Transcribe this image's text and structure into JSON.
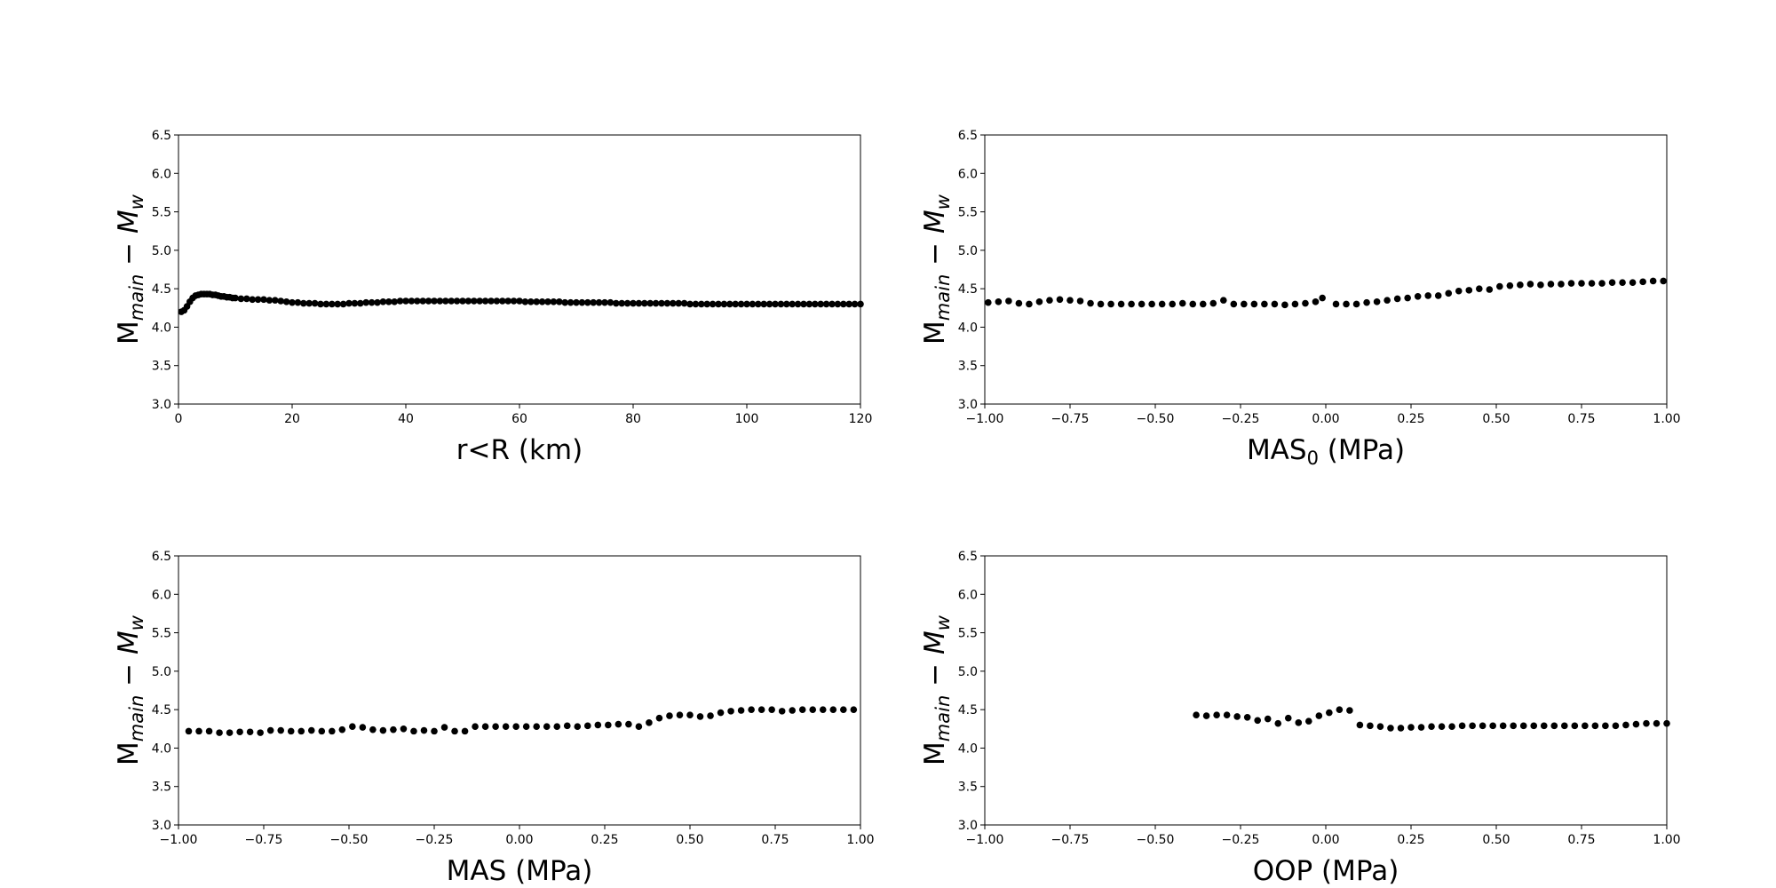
{
  "chart_data": [
    {
      "type": "scatter",
      "xlabel_main": "r<R (km)",
      "xlabel_sub": "",
      "xlabel_tail": "",
      "ylabel": {
        "main": "M",
        "sub1": "main",
        "mid": " − ",
        "italic": "M",
        "sub2": "w"
      },
      "xlim": [
        0,
        120
      ],
      "ylim": [
        3.0,
        6.5
      ],
      "xticks": [
        "0",
        "20",
        "40",
        "60",
        "80",
        "100",
        "120"
      ],
      "xtick_values": [
        0,
        20,
        40,
        60,
        80,
        100,
        120
      ],
      "yticks": [
        "3.0",
        "3.5",
        "4.0",
        "4.5",
        "5.0",
        "5.5",
        "6.0",
        "6.5"
      ],
      "ytick_values": [
        3.0,
        3.5,
        4.0,
        4.5,
        5.0,
        5.5,
        6.0,
        6.5
      ],
      "marker_color": "#000000",
      "series": [
        {
          "x": [
            0.5,
            1,
            1.5,
            2,
            2.5,
            3,
            3.5,
            4,
            4.5,
            5,
            5.5,
            6,
            6.5,
            7,
            7.5,
            8,
            8.5,
            9,
            9.5,
            10,
            11,
            12,
            13,
            14,
            15,
            16,
            17,
            18,
            19,
            20,
            21,
            22,
            23,
            24,
            25,
            26,
            27,
            28,
            29,
            30,
            31,
            32,
            33,
            34,
            35,
            36,
            37,
            38,
            39,
            40,
            41,
            42,
            43,
            44,
            45,
            46,
            47,
            48,
            49,
            50,
            51,
            52,
            53,
            54,
            55,
            56,
            57,
            58,
            59,
            60,
            61,
            62,
            63,
            64,
            65,
            66,
            67,
            68,
            69,
            70,
            71,
            72,
            73,
            74,
            75,
            76,
            77,
            78,
            79,
            80,
            81,
            82,
            83,
            84,
            85,
            86,
            87,
            88,
            89,
            90,
            91,
            92,
            93,
            94,
            95,
            96,
            97,
            98,
            99,
            100,
            101,
            102,
            103,
            104,
            105,
            106,
            107,
            108,
            109,
            110,
            111,
            112,
            113,
            114,
            115,
            116,
            117,
            118,
            119,
            120
          ],
          "y": [
            4.2,
            4.22,
            4.27,
            4.33,
            4.38,
            4.41,
            4.42,
            4.43,
            4.43,
            4.43,
            4.43,
            4.42,
            4.42,
            4.41,
            4.4,
            4.4,
            4.39,
            4.39,
            4.38,
            4.38,
            4.37,
            4.37,
            4.36,
            4.36,
            4.36,
            4.35,
            4.35,
            4.34,
            4.33,
            4.32,
            4.32,
            4.31,
            4.31,
            4.31,
            4.3,
            4.3,
            4.3,
            4.3,
            4.3,
            4.31,
            4.31,
            4.31,
            4.32,
            4.32,
            4.32,
            4.33,
            4.33,
            4.33,
            4.34,
            4.34,
            4.34,
            4.34,
            4.34,
            4.34,
            4.34,
            4.34,
            4.34,
            4.34,
            4.34,
            4.34,
            4.34,
            4.34,
            4.34,
            4.34,
            4.34,
            4.34,
            4.34,
            4.34,
            4.34,
            4.34,
            4.33,
            4.33,
            4.33,
            4.33,
            4.33,
            4.33,
            4.33,
            4.32,
            4.32,
            4.32,
            4.32,
            4.32,
            4.32,
            4.32,
            4.32,
            4.32,
            4.31,
            4.31,
            4.31,
            4.31,
            4.31,
            4.31,
            4.31,
            4.31,
            4.31,
            4.31,
            4.31,
            4.31,
            4.31,
            4.3,
            4.3,
            4.3,
            4.3,
            4.3,
            4.3,
            4.3,
            4.3,
            4.3,
            4.3,
            4.3,
            4.3,
            4.3,
            4.3,
            4.3,
            4.3,
            4.3,
            4.3,
            4.3,
            4.3,
            4.3,
            4.3,
            4.3,
            4.3,
            4.3,
            4.3,
            4.3,
            4.3,
            4.3,
            4.3,
            4.3
          ]
        }
      ]
    },
    {
      "type": "scatter",
      "xlabel_main": "MAS",
      "xlabel_sub": "0",
      "xlabel_tail": " (MPa)",
      "ylabel": {
        "main": "M",
        "sub1": "main",
        "mid": " − ",
        "italic": "M",
        "sub2": "w"
      },
      "xlim": [
        -1.0,
        1.0
      ],
      "ylim": [
        3.0,
        6.5
      ],
      "xticks": [
        "−1.00",
        "−0.75",
        "−0.50",
        "−0.25",
        "0.00",
        "0.25",
        "0.50",
        "0.75",
        "1.00"
      ],
      "xtick_values": [
        -1.0,
        -0.75,
        -0.5,
        -0.25,
        0.0,
        0.25,
        0.5,
        0.75,
        1.0
      ],
      "yticks": [
        "3.0",
        "3.5",
        "4.0",
        "4.5",
        "5.0",
        "5.5",
        "6.0",
        "6.5"
      ],
      "ytick_values": [
        3.0,
        3.5,
        4.0,
        4.5,
        5.0,
        5.5,
        6.0,
        6.5
      ],
      "marker_color": "#000000",
      "series": [
        {
          "x": [
            -0.99,
            -0.96,
            -0.93,
            -0.9,
            -0.87,
            -0.84,
            -0.81,
            -0.78,
            -0.75,
            -0.72,
            -0.69,
            -0.66,
            -0.63,
            -0.6,
            -0.57,
            -0.54,
            -0.51,
            -0.48,
            -0.45,
            -0.42,
            -0.39,
            -0.36,
            -0.33,
            -0.3,
            -0.27,
            -0.24,
            -0.21,
            -0.18,
            -0.15,
            -0.12,
            -0.09,
            -0.06,
            -0.03,
            -0.01,
            0.03,
            0.06,
            0.09,
            0.12,
            0.15,
            0.18,
            0.21,
            0.24,
            0.27,
            0.3,
            0.33,
            0.36,
            0.39,
            0.42,
            0.45,
            0.48,
            0.51,
            0.54,
            0.57,
            0.6,
            0.63,
            0.66,
            0.69,
            0.72,
            0.75,
            0.78,
            0.81,
            0.84,
            0.87,
            0.9,
            0.93,
            0.96,
            0.99
          ],
          "y": [
            4.32,
            4.33,
            4.34,
            4.31,
            4.3,
            4.33,
            4.35,
            4.36,
            4.35,
            4.34,
            4.31,
            4.3,
            4.3,
            4.3,
            4.3,
            4.3,
            4.3,
            4.3,
            4.3,
            4.31,
            4.3,
            4.3,
            4.31,
            4.35,
            4.3,
            4.3,
            4.3,
            4.3,
            4.3,
            4.29,
            4.3,
            4.31,
            4.33,
            4.38,
            4.3,
            4.3,
            4.3,
            4.32,
            4.33,
            4.35,
            4.37,
            4.38,
            4.4,
            4.41,
            4.41,
            4.44,
            4.47,
            4.48,
            4.5,
            4.49,
            4.53,
            4.54,
            4.55,
            4.56,
            4.55,
            4.56,
            4.56,
            4.57,
            4.57,
            4.57,
            4.57,
            4.58,
            4.58,
            4.58,
            4.59,
            4.6,
            4.6
          ]
        }
      ]
    },
    {
      "type": "scatter",
      "xlabel_main": "MAS (MPa)",
      "xlabel_sub": "",
      "xlabel_tail": "",
      "ylabel": {
        "main": "M",
        "sub1": "main",
        "mid": " − ",
        "italic": "M",
        "sub2": "w"
      },
      "xlim": [
        -1.0,
        1.0
      ],
      "ylim": [
        3.0,
        6.5
      ],
      "xticks": [
        "−1.00",
        "−0.75",
        "−0.50",
        "−0.25",
        "0.00",
        "0.25",
        "0.50",
        "0.75",
        "1.00"
      ],
      "xtick_values": [
        -1.0,
        -0.75,
        -0.5,
        -0.25,
        0.0,
        0.25,
        0.5,
        0.75,
        1.0
      ],
      "yticks": [
        "3.0",
        "3.5",
        "4.0",
        "4.5",
        "5.0",
        "5.5",
        "6.0",
        "6.5"
      ],
      "ytick_values": [
        3.0,
        3.5,
        4.0,
        4.5,
        5.0,
        5.5,
        6.0,
        6.5
      ],
      "marker_color": "#000000",
      "series": [
        {
          "x": [
            -0.97,
            -0.94,
            -0.91,
            -0.88,
            -0.85,
            -0.82,
            -0.79,
            -0.76,
            -0.73,
            -0.7,
            -0.67,
            -0.64,
            -0.61,
            -0.58,
            -0.55,
            -0.52,
            -0.49,
            -0.46,
            -0.43,
            -0.4,
            -0.37,
            -0.34,
            -0.31,
            -0.28,
            -0.25,
            -0.22,
            -0.19,
            -0.16,
            -0.13,
            -0.1,
            -0.07,
            -0.04,
            -0.01,
            0.02,
            0.05,
            0.08,
            0.11,
            0.14,
            0.17,
            0.2,
            0.23,
            0.26,
            0.29,
            0.32,
            0.35,
            0.38,
            0.41,
            0.44,
            0.47,
            0.5,
            0.53,
            0.56,
            0.59,
            0.62,
            0.65,
            0.68,
            0.71,
            0.74,
            0.77,
            0.8,
            0.83,
            0.86,
            0.89,
            0.92,
            0.95,
            0.98
          ],
          "y": [
            4.22,
            4.22,
            4.22,
            4.2,
            4.2,
            4.21,
            4.21,
            4.2,
            4.23,
            4.23,
            4.22,
            4.22,
            4.23,
            4.22,
            4.22,
            4.24,
            4.28,
            4.27,
            4.24,
            4.23,
            4.24,
            4.25,
            4.22,
            4.23,
            4.22,
            4.27,
            4.22,
            4.22,
            4.28,
            4.28,
            4.28,
            4.28,
            4.28,
            4.28,
            4.28,
            4.28,
            4.28,
            4.29,
            4.28,
            4.29,
            4.3,
            4.3,
            4.31,
            4.31,
            4.28,
            4.33,
            4.39,
            4.42,
            4.43,
            4.43,
            4.41,
            4.42,
            4.46,
            4.48,
            4.49,
            4.5,
            4.5,
            4.5,
            4.48,
            4.49,
            4.5,
            4.5,
            4.5,
            4.5,
            4.5,
            4.5
          ]
        }
      ]
    },
    {
      "type": "scatter",
      "xlabel_main": "OOP (MPa)",
      "xlabel_sub": "",
      "xlabel_tail": "",
      "ylabel": {
        "main": "M",
        "sub1": "main",
        "mid": " − ",
        "italic": "M",
        "sub2": "w"
      },
      "xlim": [
        -1.0,
        1.0
      ],
      "ylim": [
        3.0,
        6.5
      ],
      "xticks": [
        "−1.00",
        "−0.75",
        "−0.50",
        "−0.25",
        "0.00",
        "0.25",
        "0.50",
        "0.75",
        "1.00"
      ],
      "xtick_values": [
        -1.0,
        -0.75,
        -0.5,
        -0.25,
        0.0,
        0.25,
        0.5,
        0.75,
        1.0
      ],
      "yticks": [
        "3.0",
        "3.5",
        "4.0",
        "4.5",
        "5.0",
        "5.5",
        "6.0",
        "6.5"
      ],
      "ytick_values": [
        3.0,
        3.5,
        4.0,
        4.5,
        5.0,
        5.5,
        6.0,
        6.5
      ],
      "marker_color": "#000000",
      "series": [
        {
          "x": [
            -0.38,
            -0.35,
            -0.32,
            -0.29,
            -0.26,
            -0.23,
            -0.2,
            -0.17,
            -0.14,
            -0.11,
            -0.08,
            -0.05,
            -0.02,
            0.01,
            0.04,
            0.07,
            0.1,
            0.13,
            0.16,
            0.19,
            0.22,
            0.25,
            0.28,
            0.31,
            0.34,
            0.37,
            0.4,
            0.43,
            0.46,
            0.49,
            0.52,
            0.55,
            0.58,
            0.61,
            0.64,
            0.67,
            0.7,
            0.73,
            0.76,
            0.79,
            0.82,
            0.85,
            0.88,
            0.91,
            0.94,
            0.97,
            1.0
          ],
          "y": [
            4.43,
            4.42,
            4.43,
            4.43,
            4.41,
            4.4,
            4.36,
            4.38,
            4.32,
            4.39,
            4.33,
            4.35,
            4.42,
            4.46,
            4.5,
            4.49,
            4.3,
            4.29,
            4.28,
            4.26,
            4.26,
            4.27,
            4.27,
            4.28,
            4.28,
            4.28,
            4.29,
            4.29,
            4.29,
            4.29,
            4.29,
            4.29,
            4.29,
            4.29,
            4.29,
            4.29,
            4.29,
            4.29,
            4.29,
            4.29,
            4.29,
            4.29,
            4.3,
            4.31,
            4.32,
            4.32,
            4.32
          ]
        }
      ]
    }
  ]
}
